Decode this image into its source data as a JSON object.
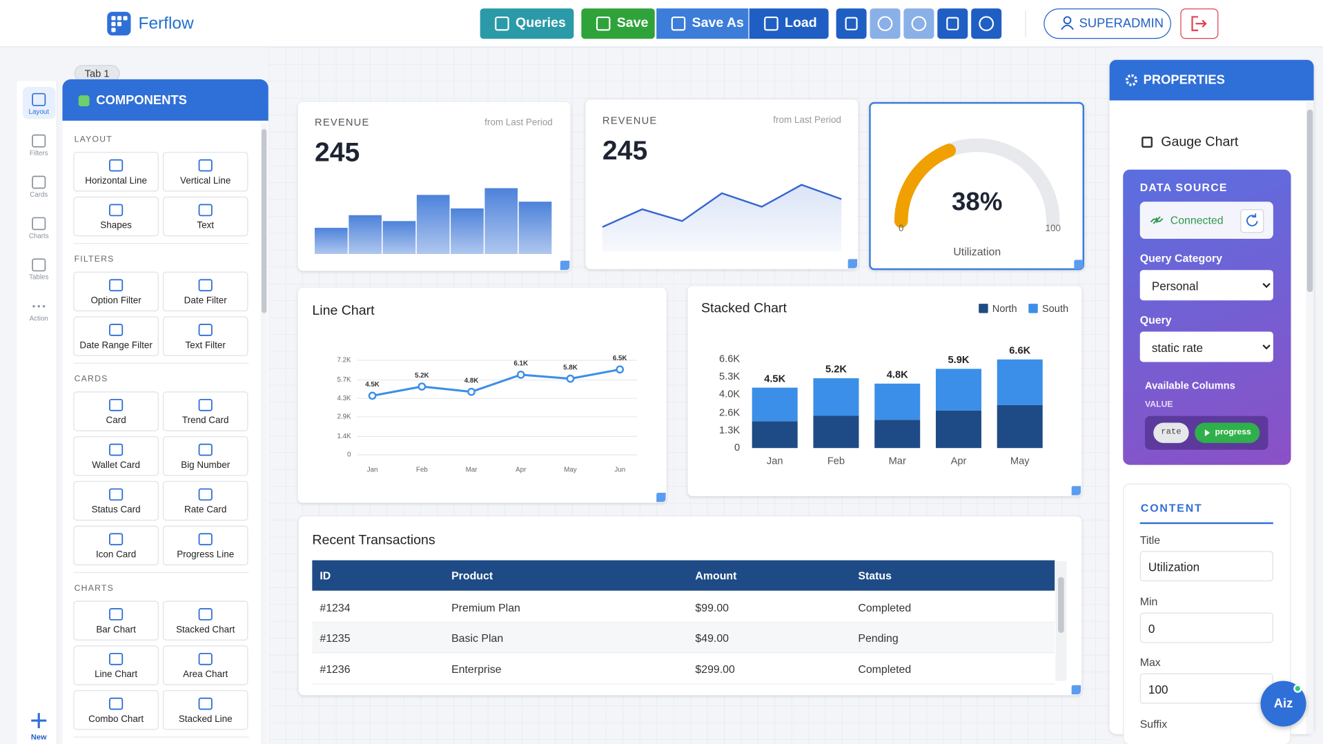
{
  "header": {
    "brand": "Ferflow",
    "actions": [
      "Queries",
      "Save",
      "Save As",
      "Load"
    ],
    "user": "SUPERADMIN"
  },
  "tab": "Tab 1",
  "rail": [
    "Layout",
    "Filters",
    "Cards",
    "Charts",
    "Tables",
    "Action"
  ],
  "rail_new": "New",
  "components": {
    "title": "COMPONENTS",
    "sections": [
      {
        "title": "LAYOUT",
        "items": [
          "Horizontal Line",
          "Vertical Line",
          "Shapes",
          "Text"
        ]
      },
      {
        "title": "FILTERS",
        "items": [
          "Option Filter",
          "Date Filter",
          "Date Range Filter",
          "Text Filter"
        ]
      },
      {
        "title": "CARDS",
        "items": [
          "Card",
          "Trend Card",
          "Wallet Card",
          "Big Number",
          "Status Card",
          "Rate Card",
          "Icon Card",
          "Progress Line"
        ]
      },
      {
        "title": "CHARTS",
        "items": [
          "Bar Chart",
          "Stacked Chart",
          "Line Chart",
          "Area Chart",
          "Combo Chart",
          "Stacked Line"
        ]
      }
    ]
  },
  "chart_data": [
    {
      "type": "bar",
      "label": "REVENUE",
      "note": "from Last Period",
      "headline": 245,
      "values": [
        31,
        46,
        39,
        70,
        54,
        78,
        62
      ],
      "color": "#4d82da"
    },
    {
      "type": "area",
      "label": "REVENUE",
      "note": "from Last Period",
      "headline": 245,
      "values": [
        29,
        50,
        36,
        69,
        53,
        79,
        62
      ],
      "color": "#3566cf"
    },
    {
      "type": "gauge",
      "value": 38,
      "value_label": "38%",
      "min": 0,
      "max": 100,
      "title": "Utilization",
      "color": "#f0a000"
    },
    {
      "type": "line",
      "title": "Line Chart",
      "categories": [
        "Jan",
        "Feb",
        "Mar",
        "Apr",
        "May",
        "Jun"
      ],
      "values": [
        4500,
        5200,
        4800,
        6100,
        5800,
        6500
      ],
      "value_labels": [
        "4.5K",
        "5.2K",
        "4.8K",
        "6.1K",
        "5.8K",
        "6.5K"
      ],
      "color": "#3b8fe8",
      "ylim": [
        0,
        7200
      ],
      "yticks": [
        0,
        {
          "value": 1400,
          "label": "1.4K"
        },
        {
          "value": 2900,
          "label": "2.9K"
        },
        {
          "value": 4300,
          "label": "4.3K"
        },
        {
          "value": 5700,
          "label": "5.7K"
        },
        {
          "value": 7200,
          "label": "7.2K"
        }
      ],
      "grid": true
    },
    {
      "type": "stacked_bar",
      "title": "Stacked Chart",
      "categories": [
        "Jan",
        "Feb",
        "Mar",
        "Apr",
        "May"
      ],
      "series": [
        {
          "name": "North",
          "color": "#1e4b85",
          "values": [
            2000,
            2400,
            2100,
            2800,
            3200
          ]
        },
        {
          "name": "South",
          "color": "#3b8fe8",
          "values": [
            2500,
            2800,
            2700,
            3100,
            3400
          ]
        }
      ],
      "total_labels": [
        "4.5K",
        "5.2K",
        "4.8K",
        "5.9K",
        "6.6K"
      ],
      "ylim": [
        0,
        6600
      ],
      "yticks": [
        0,
        {
          "value": 1300,
          "label": "1.3K"
        },
        {
          "value": 2600,
          "label": "2.6K"
        },
        {
          "value": 4000,
          "label": "4.0K"
        },
        {
          "value": 5300,
          "label": "5.3K"
        },
        {
          "value": 6600,
          "label": "6.6K"
        }
      ],
      "grid": false,
      "legend": "top-right"
    }
  ],
  "table": {
    "title": "Recent Transactions",
    "columns": [
      "ID",
      "Product",
      "Amount",
      "Status"
    ],
    "rows": [
      [
        "#1234",
        "Premium Plan",
        "$99.00",
        "Completed"
      ],
      [
        "#1235",
        "Basic Plan",
        "$49.00",
        "Pending"
      ],
      [
        "#1236",
        "Enterprise",
        "$299.00",
        "Completed"
      ]
    ]
  },
  "properties": {
    "title": "PROPERTIES",
    "component": "Gauge Chart",
    "data_source": {
      "title": "DATA SOURCE",
      "status": "Connected",
      "query_category_label": "Query Category",
      "query_category": "Personal",
      "query_label": "Query",
      "query": "static rate",
      "columns_label": "Available Columns",
      "columns_group": "VALUE",
      "columns": [
        "rate",
        "progress"
      ]
    },
    "content": {
      "title": "CONTENT",
      "fields": [
        {
          "label": "Title",
          "value": "Utilization"
        },
        {
          "label": "Min",
          "value": "0"
        },
        {
          "label": "Max",
          "value": "100"
        },
        {
          "label": "Suffix"
        }
      ]
    }
  },
  "assistant": "Aiz"
}
